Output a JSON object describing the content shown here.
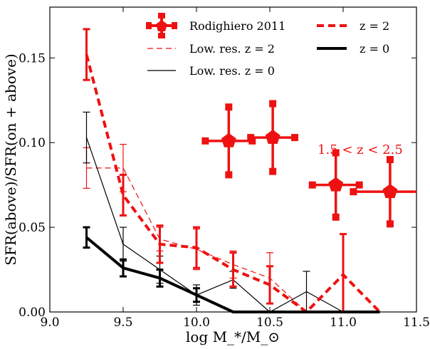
{
  "chart_data": {
    "type": "line",
    "xlabel": "log M_*/M_⊙",
    "ylabel": "SFR(above)/SFR(on + above)",
    "xlim": [
      9.0,
      11.5
    ],
    "ylim": [
      0.0,
      0.18
    ],
    "xticks": [
      "9.0",
      "9.5",
      "10.0",
      "10.5",
      "11.0",
      "11.5"
    ],
    "xtick_values": [
      9.0,
      9.5,
      10.0,
      10.5,
      11.0,
      11.5
    ],
    "yticks": [
      "0.00",
      "0.05",
      "0.10",
      "0.15"
    ],
    "ytick_values": [
      0.0,
      0.05,
      0.1,
      0.15
    ],
    "grid": false,
    "legend_position": "top",
    "annotation": {
      "text": "1.5 < z < 2.5",
      "color": "#ee1111"
    },
    "colors": {
      "red": "#ee1111",
      "black": "#000000"
    },
    "series": [
      {
        "name": "Rodighiero 2011",
        "style": "points",
        "color": "#ee1111",
        "points": [
          {
            "x": 10.22,
            "y": 0.101,
            "xerr": 0.16,
            "yerr": 0.02
          },
          {
            "x": 10.52,
            "y": 0.103,
            "xerr": 0.15,
            "yerr": 0.02
          },
          {
            "x": 10.95,
            "y": 0.075,
            "xerr": 0.16,
            "yerr": 0.019
          },
          {
            "x": 11.32,
            "y": 0.071,
            "xerr": 0.25,
            "yerr": 0.019
          }
        ]
      },
      {
        "name": "Low. res. z = 2",
        "style": "thin-dashed",
        "color": "#ee1111",
        "x": [
          9.25,
          9.5,
          9.75,
          10.0,
          10.25,
          10.5,
          10.75
        ],
        "y": [
          0.085,
          0.085,
          0.043,
          0.037,
          0.028,
          0.02,
          0.0
        ],
        "err": [
          0.012,
          0.014,
          0.007,
          0.012,
          0.008,
          0.015,
          0
        ]
      },
      {
        "name": "Low. res. z = 0",
        "style": "thin-solid",
        "color": "#000000",
        "x": [
          9.25,
          9.5,
          9.75,
          10.0,
          10.25,
          10.5,
          10.75,
          11.0,
          11.25
        ],
        "y": [
          0.103,
          0.04,
          0.025,
          0.01,
          0.019,
          0.0,
          0.012,
          0.0,
          0.0
        ],
        "err": [
          0.015,
          0.01,
          0.008,
          0.006,
          0.005,
          0,
          0.012,
          0,
          0
        ]
      },
      {
        "name": "z = 2",
        "style": "thick-dashed",
        "color": "#ee1111",
        "x": [
          9.25,
          9.5,
          9.75,
          10.0,
          10.25,
          10.5,
          10.75,
          11.0,
          11.25
        ],
        "y": [
          0.152,
          0.069,
          0.04,
          0.038,
          0.025,
          0.016,
          0.0,
          0.022,
          0.0
        ],
        "err": [
          0.015,
          0.012,
          0.011,
          0.012,
          0.01,
          0.011,
          0,
          0.024,
          0
        ]
      },
      {
        "name": "z = 0",
        "style": "thick-solid",
        "color": "#000000",
        "x": [
          9.25,
          9.5,
          9.75,
          10.0,
          10.25,
          10.5,
          10.75,
          11.0,
          11.25
        ],
        "y": [
          0.044,
          0.026,
          0.02,
          0.01,
          0.0,
          0.0,
          0.0,
          0.0,
          0.0
        ],
        "err": [
          0.006,
          0.005,
          0.005,
          0.004,
          0,
          0,
          0,
          0,
          0
        ]
      }
    ]
  }
}
